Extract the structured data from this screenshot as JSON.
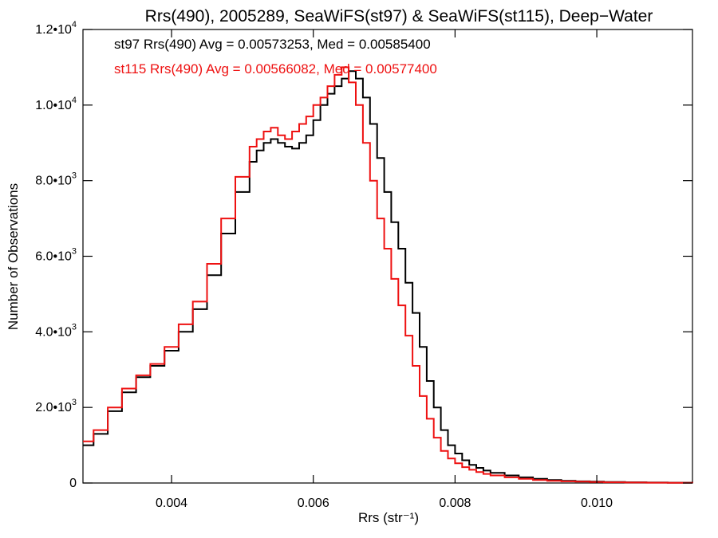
{
  "chart_data": {
    "type": "line",
    "title": "Rrs(490), 2005289, SeaWiFS(st97) & SeaWiFS(st115), Deep−Water",
    "xlabel": "Rrs (str⁻¹)",
    "ylabel": "Number of Observations",
    "xlim": [
      0.00275,
      0.01135
    ],
    "ylim": [
      0,
      12000
    ],
    "x_ticks": [
      {
        "value": 0.004,
        "label": "0.004"
      },
      {
        "value": 0.006,
        "label": "0.006"
      },
      {
        "value": 0.008,
        "label": "0.008"
      },
      {
        "value": 0.01,
        "label": "0.010"
      }
    ],
    "y_ticks": [
      {
        "value": 0,
        "label": "0",
        "exp": ""
      },
      {
        "value": 2000,
        "label": "2.0•10",
        "exp": "3"
      },
      {
        "value": 4000,
        "label": "4.0•10",
        "exp": "3"
      },
      {
        "value": 6000,
        "label": "6.0•10",
        "exp": "3"
      },
      {
        "value": 8000,
        "label": "8.0•10",
        "exp": "3"
      },
      {
        "value": 10000,
        "label": "1.0•10",
        "exp": "4"
      },
      {
        "value": 12000,
        "label": "1.2•10",
        "exp": "4"
      }
    ],
    "grid": false,
    "annotations": [
      {
        "text": "st97 Rrs(490) Avg = 0.00573253, Med = 0.00585400",
        "color": "#000000"
      },
      {
        "text": "st115 Rrs(490) Avg = 0.00566082, Med = 0.00577400",
        "color": "#ee1111"
      }
    ],
    "series": [
      {
        "color": "#000000",
        "x": [
          0.00275,
          0.0029,
          0.0031,
          0.0033,
          0.0035,
          0.0037,
          0.0039,
          0.0041,
          0.0043,
          0.0045,
          0.0047,
          0.0049,
          0.0051,
          0.0052,
          0.0053,
          0.0054,
          0.0055,
          0.0056,
          0.0057,
          0.0058,
          0.0059,
          0.006,
          0.0061,
          0.0062,
          0.0063,
          0.0064,
          0.0065,
          0.0066,
          0.0067,
          0.0068,
          0.0069,
          0.007,
          0.0071,
          0.0072,
          0.0073,
          0.0074,
          0.0075,
          0.0076,
          0.0077,
          0.0078,
          0.0079,
          0.008,
          0.0081,
          0.0082,
          0.0083,
          0.0084,
          0.0085,
          0.0087,
          0.0089,
          0.0091,
          0.0093,
          0.0095,
          0.0097,
          0.0099,
          0.0101,
          0.0104,
          0.0107,
          0.011,
          0.01135
        ],
        "y": [
          1000,
          1300,
          1900,
          2400,
          2800,
          3100,
          3500,
          4000,
          4600,
          5500,
          6600,
          7700,
          8500,
          8800,
          9000,
          9100,
          9000,
          8900,
          8850,
          9000,
          9200,
          9600,
          10000,
          10300,
          10500,
          10700,
          10900,
          10700,
          10200,
          9500,
          8600,
          7700,
          6900,
          6200,
          5300,
          4500,
          3600,
          2700,
          2000,
          1400,
          1000,
          780,
          600,
          480,
          400,
          330,
          270,
          200,
          150,
          110,
          80,
          60,
          45,
          35,
          25,
          18,
          12,
          8,
          5
        ]
      },
      {
        "color": "#ee1111",
        "x": [
          0.00275,
          0.0029,
          0.0031,
          0.0033,
          0.0035,
          0.0037,
          0.0039,
          0.0041,
          0.0043,
          0.0045,
          0.0047,
          0.0049,
          0.0051,
          0.0052,
          0.0053,
          0.0054,
          0.0055,
          0.0056,
          0.0057,
          0.0058,
          0.0059,
          0.006,
          0.0061,
          0.0062,
          0.0063,
          0.0064,
          0.0065,
          0.0066,
          0.0067,
          0.0068,
          0.0069,
          0.007,
          0.0071,
          0.0072,
          0.0073,
          0.0074,
          0.0075,
          0.0076,
          0.0077,
          0.0078,
          0.0079,
          0.008,
          0.0081,
          0.0082,
          0.0083,
          0.0084,
          0.0085,
          0.0087,
          0.0089,
          0.0091,
          0.0093,
          0.0095,
          0.0097,
          0.0099,
          0.0101,
          0.0104,
          0.0107,
          0.011,
          0.01135
        ],
        "y": [
          1100,
          1400,
          2000,
          2500,
          2850,
          3150,
          3600,
          4200,
          4800,
          5800,
          7000,
          8100,
          8900,
          9100,
          9300,
          9400,
          9200,
          9100,
          9300,
          9500,
          9700,
          10000,
          10200,
          10500,
          10800,
          11000,
          10600,
          10000,
          9000,
          8000,
          7000,
          6200,
          5400,
          4700,
          3900,
          3100,
          2300,
          1700,
          1200,
          850,
          650,
          520,
          420,
          350,
          290,
          240,
          200,
          150,
          110,
          80,
          60,
          45,
          35,
          25,
          18,
          12,
          8,
          5,
          3
        ]
      }
    ]
  }
}
